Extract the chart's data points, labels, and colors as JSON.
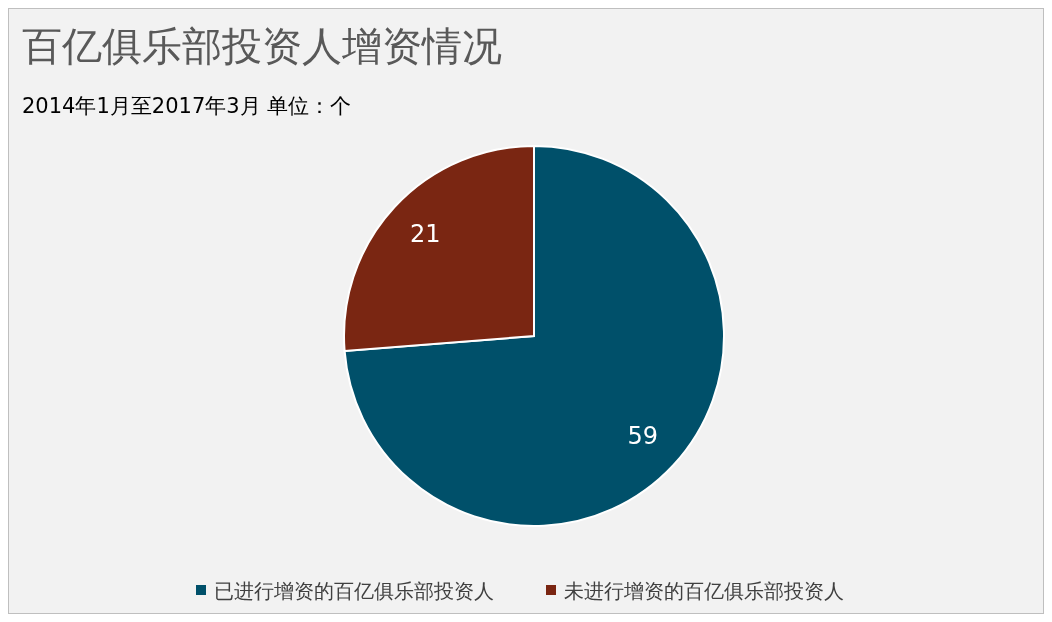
{
  "chart_data": {
    "type": "pie",
    "title": "百亿俱乐部投资人增资情况",
    "subtitle": "2014年1月至2017年3月  单位：个",
    "categories": [
      "已进行增资的百亿俱乐部投资人",
      "未进行增资的百亿俱乐部投资人"
    ],
    "values": [
      59,
      21
    ],
    "colors": [
      "#00506a",
      "#7a2612"
    ],
    "data_labels": true,
    "legend": "bottom"
  }
}
